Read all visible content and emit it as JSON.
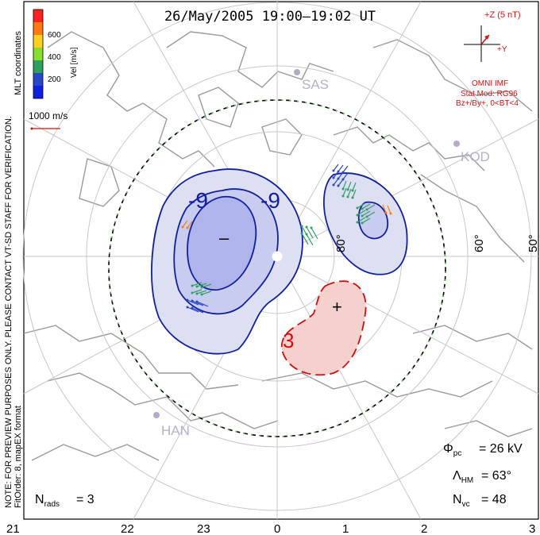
{
  "title": "26/May/2005 19:00–19:02 UT",
  "coordinate_label": "MLT coordinates",
  "colorbar": {
    "label": "Vel [m/s]",
    "ticks": [
      "600",
      "400",
      "200"
    ],
    "colors": [
      "#ff2020",
      "#ff7a10",
      "#ffd020",
      "#88dd30",
      "#30a060",
      "#2848c8",
      "#1020e0"
    ]
  },
  "scale_vector": {
    "label": "1000 m/s"
  },
  "imf": {
    "z_label": "+Z (5 nT)",
    "y_label": "+Y",
    "source": "OMNI IMF",
    "stat_mod": "Stat Mod: RG96",
    "condition": "Bz+/By+, 0<BT<4",
    "color": "#dd1010"
  },
  "stations": [
    {
      "name": "SAS"
    },
    {
      "name": "KOD"
    },
    {
      "name": "HAN"
    }
  ],
  "latitude_labels": [
    "80°",
    "60°",
    "50°"
  ],
  "contour_labels": {
    "neg": "-9",
    "neg2": "-9",
    "pos": "3",
    "min_symbol": "–",
    "max_symbol": "+"
  },
  "stats": {
    "phi_symbol": "Φ",
    "phi_sub": "pc",
    "phi_value": "= 26 kV",
    "lambda_symbol": "Λ",
    "lambda_sub": "HM",
    "lambda_value": "= 63°",
    "nvc_symbol": "N",
    "nvc_sub": "vc",
    "nvc_value": "= 48",
    "nrads_symbol": "N",
    "nrads_sub": "rads",
    "nrads_value": "= 3"
  },
  "disclaimer": "NOTE: FOR PREVIEW PURPOSES ONLY. PLEASE CONTACT VT-SD STAFF FOR VERIFICATION.",
  "fitorder": "FitOrder: 8, mapEX format",
  "mlt_ticks": [
    "21",
    "22",
    "23",
    "0",
    "1",
    "2",
    "3"
  ],
  "colors": {
    "negative_line": "#1020a0",
    "positive_line": "#d01010",
    "negative_fill": "#dde0f2",
    "negative_core": "#b0b4ec",
    "positive_fill": "#f5d0cc",
    "boundary_dash": "#66d060"
  }
}
